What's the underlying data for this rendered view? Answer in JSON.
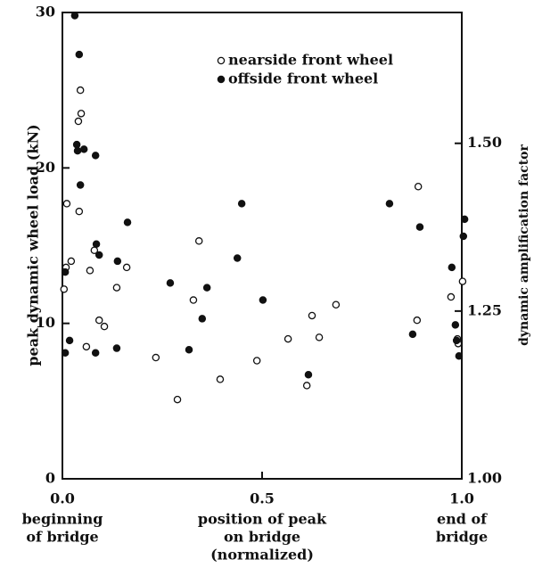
{
  "chart_data": {
    "type": "scatter",
    "ylabel": "peak dynamic wheel load (kN)",
    "y2label": "dynamic amplification factor",
    "xlabel_left": [
      "beginning",
      "of bridge"
    ],
    "xlabel_center": [
      "position of peak",
      "on bridge",
      "(normalized)"
    ],
    "xlabel_right": [
      "end of",
      "bridge"
    ],
    "xlim": [
      0,
      1
    ],
    "xticks": [
      {
        "value": 0,
        "label": "0.0"
      },
      {
        "value": 0.5,
        "label": "0.5"
      },
      {
        "value": 1,
        "label": "1.0"
      }
    ],
    "ylim": [
      0,
      30
    ],
    "yticks": [
      0,
      10,
      20,
      30
    ],
    "y2lim": [
      1,
      1.695
    ],
    "y2ticks": [
      {
        "value": 1,
        "label": "1.00"
      },
      {
        "value": 1.25,
        "label": "1.25"
      },
      {
        "value": 1.5,
        "label": "1.50"
      }
    ],
    "legend": "upper right",
    "series": [
      {
        "name": "nearside front wheel",
        "color": "#111",
        "filled": false,
        "x": [
          0.011,
          0.004,
          0.009,
          0.022,
          0.04,
          0.045,
          0.047,
          0.042,
          0.06,
          0.069,
          0.08,
          0.092,
          0.105,
          0.136,
          0.161,
          0.234,
          0.288,
          0.328,
          0.342,
          0.395,
          0.487,
          0.565,
          0.625,
          0.643,
          0.685,
          0.612,
          0.891,
          0.888,
          0.973,
          1.002,
          0.989,
          0.991
        ],
        "values": [
          17.7,
          12.2,
          13.6,
          14.0,
          23.0,
          25.0,
          23.5,
          17.2,
          8.5,
          13.4,
          14.7,
          10.2,
          9.8,
          12.3,
          13.6,
          7.8,
          5.1,
          11.5,
          15.3,
          6.4,
          7.6,
          9.0,
          10.5,
          9.1,
          11.2,
          6.0,
          18.8,
          10.2,
          11.7,
          12.7,
          9.0,
          8.7
        ]
      },
      {
        "name": "offside front wheel",
        "color": "#111",
        "filled": true,
        "x": [
          0.031,
          0.042,
          0.036,
          0.038,
          0.054,
          0.083,
          0.045,
          0.007,
          0.007,
          0.018,
          0.083,
          0.085,
          0.092,
          0.138,
          0.136,
          0.163,
          0.27,
          0.317,
          0.362,
          0.35,
          0.438,
          0.449,
          0.502,
          0.616,
          0.819,
          0.895,
          0.877,
          0.975,
          0.984,
          0.993,
          1.007,
          1.004,
          0.987
        ],
        "values": [
          29.8,
          27.3,
          21.5,
          21.1,
          21.2,
          20.8,
          18.9,
          13.3,
          8.1,
          8.9,
          8.1,
          15.1,
          14.4,
          14.0,
          8.4,
          16.5,
          12.6,
          8.3,
          12.3,
          10.3,
          14.2,
          17.7,
          11.5,
          6.7,
          17.7,
          16.2,
          9.3,
          13.6,
          9.9,
          7.9,
          16.7,
          15.6,
          8.9
        ]
      }
    ]
  }
}
